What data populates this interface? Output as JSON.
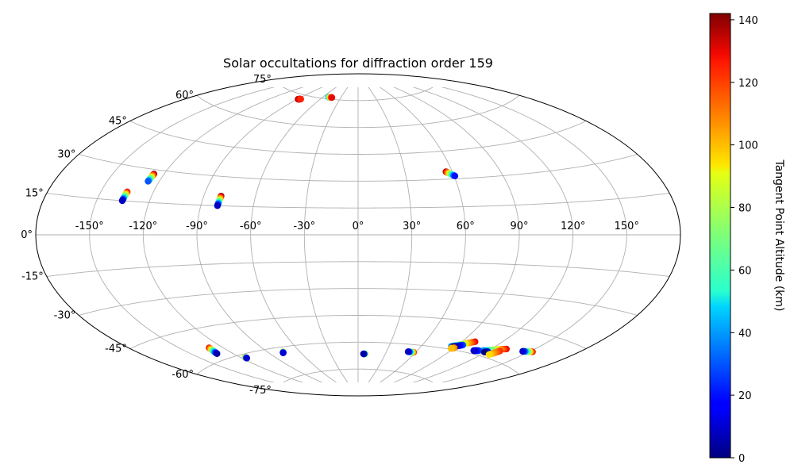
{
  "chart_data": {
    "type": "scatter",
    "projection": "aitoff",
    "title": "Solar occultations for diffraction order 159",
    "x_ticks": [
      "-150°",
      "-120°",
      "-90°",
      "-60°",
      "-30°",
      "0°",
      "30°",
      "60°",
      "90°",
      "120°",
      "150°"
    ],
    "y_ticks": [
      "-75°",
      "-60°",
      "-45°",
      "-30°",
      "-15°",
      "0°",
      "15°",
      "30°",
      "45°",
      "60°",
      "75°"
    ],
    "grid": true,
    "colorbar": {
      "label": "Tangent Point Altitude (km)",
      "colormap": "jet",
      "range": [
        0,
        142
      ],
      "ticks": [
        "0",
        "20",
        "40",
        "60",
        "80",
        "100",
        "120",
        "140"
      ]
    },
    "series": [
      {
        "lon_start": -135,
        "lat_start": 19,
        "lon_end": -135.5,
        "lat_end": 15,
        "alt_start": 130,
        "alt_end": 8
      },
      {
        "lon_start": -126,
        "lat_start": 28,
        "lon_end": -126.5,
        "lat_end": 24.5,
        "alt_start": 140,
        "alt_end": 30
      },
      {
        "lon_start": -80,
        "lat_start": 20,
        "lon_end": -80.5,
        "lat_end": 15,
        "alt_start": 140,
        "alt_end": 8
      },
      {
        "lon_start": -89,
        "lat_start": 72.5,
        "lon_end": -86,
        "lat_end": 72.8,
        "alt_start": 140,
        "alt_end": 125
      },
      {
        "lon_start": -51,
        "lat_start": 76,
        "lon_end": -45,
        "lat_end": 76,
        "alt_start": 40,
        "alt_end": 130
      },
      {
        "lon_start": 56,
        "lat_start": 34,
        "lon_end": 60.5,
        "lat_end": 31.5,
        "alt_start": 138,
        "alt_end": 20
      },
      {
        "lon_start": -130,
        "lat_start": -54,
        "lon_end": -132,
        "lat_end": -57,
        "alt_start": 130,
        "alt_end": 5
      },
      {
        "lon_start": -116,
        "lat_start": -61.5,
        "lon_end": -116,
        "lat_end": -62,
        "alt_start": 110,
        "alt_end": 10
      },
      {
        "lon_start": -76,
        "lat_start": -62.5,
        "lon_end": -77,
        "lat_end": -63,
        "alt_start": 100,
        "alt_end": 10
      },
      {
        "lon_start": 8,
        "lat_start": -66.5,
        "lon_end": 6,
        "lat_end": -66.5,
        "alt_start": 100,
        "alt_end": 5
      },
      {
        "lon_start": 58,
        "lat_start": -64,
        "lon_end": 52,
        "lat_end": -64,
        "alt_start": 125,
        "alt_end": 8
      },
      {
        "lon_start": 100,
        "lat_start": -54.5,
        "lon_end": 86,
        "lat_end": -58.5,
        "alt_start": 130,
        "alt_end": 35
      },
      {
        "lon_start": 94,
        "lat_start": -57,
        "lon_end": 88,
        "lat_end": -58.5,
        "alt_start": 30,
        "alt_end": 0
      },
      {
        "lon_start": 90,
        "lat_start": -59,
        "lon_end": 88,
        "lat_end": -59.5,
        "alt_start": 110,
        "alt_end": 100
      },
      {
        "lon_start": 131,
        "lat_start": -54.5,
        "lon_end": 116,
        "lat_end": -57.5,
        "alt_start": 130,
        "alt_end": 40
      },
      {
        "lon_start": 113,
        "lat_start": -58,
        "lon_end": 109,
        "lat_end": -58.5,
        "alt_start": 30,
        "alt_end": 10
      },
      {
        "lon_start": 121,
        "lat_start": -57.5,
        "lon_end": 119,
        "lat_end": -58,
        "alt_start": 20,
        "alt_end": 0
      },
      {
        "lon_start": 129,
        "lat_start": -56,
        "lon_end": 126,
        "lat_end": -58.5,
        "alt_start": 125,
        "alt_end": 95
      },
      {
        "lon_start": 152,
        "lat_start": -52.5,
        "lon_end": 145,
        "lat_end": -53.5,
        "alt_start": 130,
        "alt_end": 10
      }
    ]
  }
}
